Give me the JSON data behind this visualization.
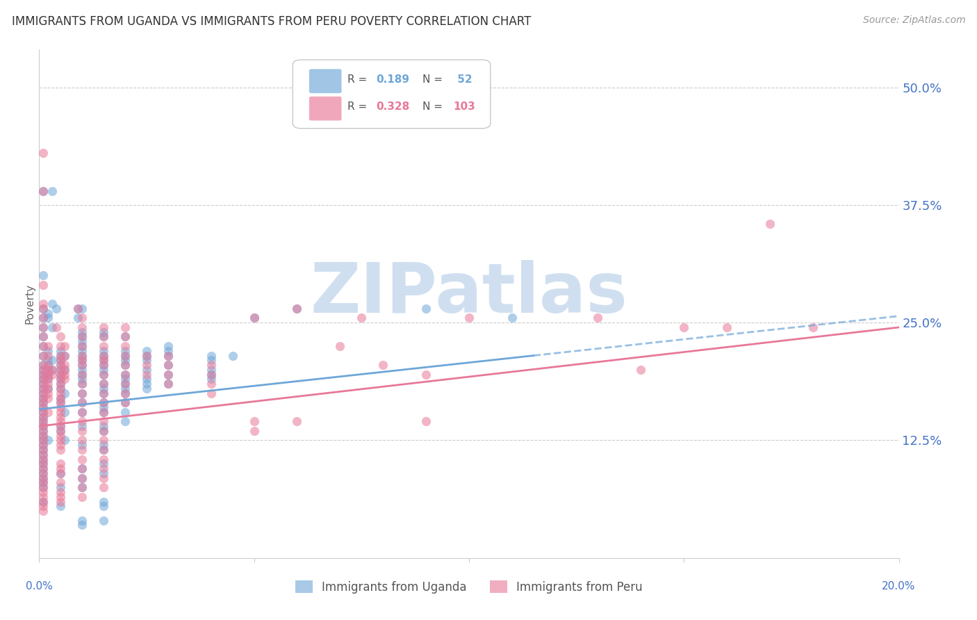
{
  "title": "IMMIGRANTS FROM UGANDA VS IMMIGRANTS FROM PERU POVERTY CORRELATION CHART",
  "source": "Source: ZipAtlas.com",
  "ylabel": "Poverty",
  "right_yticks": [
    "50.0%",
    "37.5%",
    "25.0%",
    "12.5%"
  ],
  "right_ytick_vals": [
    0.5,
    0.375,
    0.25,
    0.125
  ],
  "xlim": [
    0.0,
    0.2
  ],
  "ylim": [
    0.0,
    0.54
  ],
  "uganda_color": "#6ea6d8",
  "peru_color": "#e87898",
  "scatter_alpha": 0.55,
  "scatter_size": 90,
  "uganda_points": [
    [
      0.001,
      0.39
    ],
    [
      0.003,
      0.39
    ],
    [
      0.001,
      0.3
    ],
    [
      0.003,
      0.27
    ],
    [
      0.001,
      0.265
    ],
    [
      0.002,
      0.26
    ],
    [
      0.001,
      0.255
    ],
    [
      0.002,
      0.255
    ],
    [
      0.001,
      0.245
    ],
    [
      0.003,
      0.245
    ],
    [
      0.001,
      0.235
    ],
    [
      0.001,
      0.225
    ],
    [
      0.002,
      0.22
    ],
    [
      0.001,
      0.215
    ],
    [
      0.002,
      0.21
    ],
    [
      0.003,
      0.21
    ],
    [
      0.001,
      0.205
    ],
    [
      0.002,
      0.205
    ],
    [
      0.001,
      0.2
    ],
    [
      0.002,
      0.2
    ],
    [
      0.003,
      0.2
    ],
    [
      0.001,
      0.195
    ],
    [
      0.002,
      0.195
    ],
    [
      0.001,
      0.19
    ],
    [
      0.002,
      0.19
    ],
    [
      0.001,
      0.185
    ],
    [
      0.001,
      0.18
    ],
    [
      0.002,
      0.18
    ],
    [
      0.001,
      0.175
    ],
    [
      0.001,
      0.17
    ],
    [
      0.001,
      0.165
    ],
    [
      0.001,
      0.16
    ],
    [
      0.001,
      0.155
    ],
    [
      0.001,
      0.15
    ],
    [
      0.001,
      0.145
    ],
    [
      0.001,
      0.14
    ],
    [
      0.001,
      0.135
    ],
    [
      0.001,
      0.13
    ],
    [
      0.001,
      0.125
    ],
    [
      0.002,
      0.125
    ],
    [
      0.001,
      0.12
    ],
    [
      0.001,
      0.115
    ],
    [
      0.001,
      0.11
    ],
    [
      0.001,
      0.105
    ],
    [
      0.001,
      0.1
    ],
    [
      0.001,
      0.095
    ],
    [
      0.001,
      0.09
    ],
    [
      0.001,
      0.085
    ],
    [
      0.001,
      0.08
    ],
    [
      0.001,
      0.075
    ],
    [
      0.001,
      0.06
    ],
    [
      0.004,
      0.265
    ],
    [
      0.005,
      0.22
    ],
    [
      0.005,
      0.215
    ],
    [
      0.006,
      0.215
    ],
    [
      0.005,
      0.21
    ],
    [
      0.005,
      0.205
    ],
    [
      0.005,
      0.2
    ],
    [
      0.006,
      0.2
    ],
    [
      0.005,
      0.195
    ],
    [
      0.005,
      0.19
    ],
    [
      0.005,
      0.185
    ],
    [
      0.005,
      0.18
    ],
    [
      0.006,
      0.175
    ],
    [
      0.005,
      0.17
    ],
    [
      0.005,
      0.165
    ],
    [
      0.006,
      0.155
    ],
    [
      0.005,
      0.14
    ],
    [
      0.005,
      0.135
    ],
    [
      0.006,
      0.125
    ],
    [
      0.005,
      0.09
    ],
    [
      0.005,
      0.075
    ],
    [
      0.005,
      0.055
    ],
    [
      0.009,
      0.265
    ],
    [
      0.01,
      0.265
    ],
    [
      0.009,
      0.255
    ],
    [
      0.01,
      0.24
    ],
    [
      0.01,
      0.235
    ],
    [
      0.01,
      0.23
    ],
    [
      0.01,
      0.225
    ],
    [
      0.01,
      0.22
    ],
    [
      0.01,
      0.215
    ],
    [
      0.01,
      0.21
    ],
    [
      0.01,
      0.205
    ],
    [
      0.01,
      0.2
    ],
    [
      0.01,
      0.195
    ],
    [
      0.01,
      0.19
    ],
    [
      0.01,
      0.185
    ],
    [
      0.01,
      0.175
    ],
    [
      0.01,
      0.165
    ],
    [
      0.01,
      0.155
    ],
    [
      0.01,
      0.14
    ],
    [
      0.01,
      0.12
    ],
    [
      0.01,
      0.095
    ],
    [
      0.01,
      0.085
    ],
    [
      0.01,
      0.075
    ],
    [
      0.01,
      0.04
    ],
    [
      0.01,
      0.035
    ],
    [
      0.015,
      0.24
    ],
    [
      0.015,
      0.235
    ],
    [
      0.015,
      0.22
    ],
    [
      0.015,
      0.215
    ],
    [
      0.015,
      0.21
    ],
    [
      0.015,
      0.205
    ],
    [
      0.015,
      0.2
    ],
    [
      0.015,
      0.195
    ],
    [
      0.015,
      0.185
    ],
    [
      0.015,
      0.18
    ],
    [
      0.015,
      0.175
    ],
    [
      0.015,
      0.165
    ],
    [
      0.015,
      0.16
    ],
    [
      0.015,
      0.155
    ],
    [
      0.015,
      0.14
    ],
    [
      0.015,
      0.135
    ],
    [
      0.015,
      0.12
    ],
    [
      0.015,
      0.115
    ],
    [
      0.015,
      0.1
    ],
    [
      0.015,
      0.09
    ],
    [
      0.015,
      0.06
    ],
    [
      0.015,
      0.055
    ],
    [
      0.015,
      0.04
    ],
    [
      0.02,
      0.235
    ],
    [
      0.02,
      0.22
    ],
    [
      0.02,
      0.215
    ],
    [
      0.02,
      0.21
    ],
    [
      0.02,
      0.205
    ],
    [
      0.02,
      0.195
    ],
    [
      0.02,
      0.19
    ],
    [
      0.02,
      0.185
    ],
    [
      0.02,
      0.18
    ],
    [
      0.02,
      0.175
    ],
    [
      0.02,
      0.165
    ],
    [
      0.02,
      0.155
    ],
    [
      0.02,
      0.145
    ],
    [
      0.025,
      0.22
    ],
    [
      0.025,
      0.215
    ],
    [
      0.025,
      0.21
    ],
    [
      0.025,
      0.2
    ],
    [
      0.025,
      0.19
    ],
    [
      0.025,
      0.185
    ],
    [
      0.025,
      0.18
    ],
    [
      0.03,
      0.225
    ],
    [
      0.03,
      0.22
    ],
    [
      0.03,
      0.215
    ],
    [
      0.03,
      0.205
    ],
    [
      0.03,
      0.195
    ],
    [
      0.03,
      0.185
    ],
    [
      0.04,
      0.215
    ],
    [
      0.04,
      0.21
    ],
    [
      0.04,
      0.2
    ],
    [
      0.04,
      0.195
    ],
    [
      0.04,
      0.19
    ],
    [
      0.045,
      0.215
    ],
    [
      0.05,
      0.255
    ],
    [
      0.06,
      0.265
    ],
    [
      0.09,
      0.265
    ],
    [
      0.11,
      0.255
    ]
  ],
  "peru_points": [
    [
      0.001,
      0.43
    ],
    [
      0.001,
      0.39
    ],
    [
      0.001,
      0.29
    ],
    [
      0.001,
      0.27
    ],
    [
      0.001,
      0.265
    ],
    [
      0.001,
      0.255
    ],
    [
      0.001,
      0.245
    ],
    [
      0.001,
      0.235
    ],
    [
      0.001,
      0.225
    ],
    [
      0.002,
      0.225
    ],
    [
      0.001,
      0.215
    ],
    [
      0.002,
      0.215
    ],
    [
      0.001,
      0.205
    ],
    [
      0.002,
      0.205
    ],
    [
      0.001,
      0.2
    ],
    [
      0.002,
      0.2
    ],
    [
      0.003,
      0.2
    ],
    [
      0.001,
      0.195
    ],
    [
      0.002,
      0.195
    ],
    [
      0.003,
      0.195
    ],
    [
      0.001,
      0.19
    ],
    [
      0.002,
      0.19
    ],
    [
      0.001,
      0.185
    ],
    [
      0.002,
      0.185
    ],
    [
      0.001,
      0.18
    ],
    [
      0.002,
      0.18
    ],
    [
      0.001,
      0.175
    ],
    [
      0.002,
      0.175
    ],
    [
      0.001,
      0.17
    ],
    [
      0.002,
      0.17
    ],
    [
      0.001,
      0.165
    ],
    [
      0.001,
      0.16
    ],
    [
      0.001,
      0.155
    ],
    [
      0.002,
      0.155
    ],
    [
      0.001,
      0.15
    ],
    [
      0.001,
      0.145
    ],
    [
      0.001,
      0.14
    ],
    [
      0.001,
      0.135
    ],
    [
      0.001,
      0.13
    ],
    [
      0.001,
      0.125
    ],
    [
      0.001,
      0.12
    ],
    [
      0.001,
      0.115
    ],
    [
      0.001,
      0.11
    ],
    [
      0.001,
      0.105
    ],
    [
      0.001,
      0.1
    ],
    [
      0.001,
      0.095
    ],
    [
      0.001,
      0.09
    ],
    [
      0.001,
      0.085
    ],
    [
      0.001,
      0.08
    ],
    [
      0.001,
      0.075
    ],
    [
      0.001,
      0.07
    ],
    [
      0.001,
      0.065
    ],
    [
      0.001,
      0.06
    ],
    [
      0.001,
      0.055
    ],
    [
      0.001,
      0.05
    ],
    [
      0.004,
      0.245
    ],
    [
      0.005,
      0.235
    ],
    [
      0.005,
      0.225
    ],
    [
      0.006,
      0.225
    ],
    [
      0.005,
      0.215
    ],
    [
      0.006,
      0.215
    ],
    [
      0.005,
      0.21
    ],
    [
      0.005,
      0.205
    ],
    [
      0.006,
      0.205
    ],
    [
      0.005,
      0.2
    ],
    [
      0.006,
      0.2
    ],
    [
      0.005,
      0.195
    ],
    [
      0.006,
      0.195
    ],
    [
      0.005,
      0.19
    ],
    [
      0.006,
      0.19
    ],
    [
      0.005,
      0.185
    ],
    [
      0.005,
      0.18
    ],
    [
      0.005,
      0.175
    ],
    [
      0.005,
      0.17
    ],
    [
      0.005,
      0.165
    ],
    [
      0.005,
      0.16
    ],
    [
      0.005,
      0.155
    ],
    [
      0.005,
      0.15
    ],
    [
      0.005,
      0.145
    ],
    [
      0.005,
      0.14
    ],
    [
      0.005,
      0.135
    ],
    [
      0.005,
      0.13
    ],
    [
      0.005,
      0.125
    ],
    [
      0.005,
      0.12
    ],
    [
      0.005,
      0.115
    ],
    [
      0.005,
      0.1
    ],
    [
      0.005,
      0.095
    ],
    [
      0.005,
      0.09
    ],
    [
      0.005,
      0.08
    ],
    [
      0.005,
      0.07
    ],
    [
      0.005,
      0.065
    ],
    [
      0.005,
      0.06
    ],
    [
      0.009,
      0.265
    ],
    [
      0.01,
      0.255
    ],
    [
      0.01,
      0.245
    ],
    [
      0.01,
      0.235
    ],
    [
      0.01,
      0.225
    ],
    [
      0.01,
      0.215
    ],
    [
      0.01,
      0.21
    ],
    [
      0.01,
      0.205
    ],
    [
      0.01,
      0.195
    ],
    [
      0.01,
      0.185
    ],
    [
      0.01,
      0.175
    ],
    [
      0.01,
      0.165
    ],
    [
      0.01,
      0.155
    ],
    [
      0.01,
      0.145
    ],
    [
      0.01,
      0.135
    ],
    [
      0.01,
      0.125
    ],
    [
      0.01,
      0.115
    ],
    [
      0.01,
      0.105
    ],
    [
      0.01,
      0.095
    ],
    [
      0.01,
      0.085
    ],
    [
      0.01,
      0.075
    ],
    [
      0.01,
      0.065
    ],
    [
      0.015,
      0.245
    ],
    [
      0.015,
      0.235
    ],
    [
      0.015,
      0.225
    ],
    [
      0.015,
      0.215
    ],
    [
      0.015,
      0.21
    ],
    [
      0.015,
      0.205
    ],
    [
      0.015,
      0.195
    ],
    [
      0.015,
      0.185
    ],
    [
      0.015,
      0.175
    ],
    [
      0.015,
      0.165
    ],
    [
      0.015,
      0.155
    ],
    [
      0.015,
      0.145
    ],
    [
      0.015,
      0.135
    ],
    [
      0.015,
      0.125
    ],
    [
      0.015,
      0.115
    ],
    [
      0.015,
      0.105
    ],
    [
      0.015,
      0.095
    ],
    [
      0.015,
      0.085
    ],
    [
      0.015,
      0.075
    ],
    [
      0.02,
      0.245
    ],
    [
      0.02,
      0.235
    ],
    [
      0.02,
      0.225
    ],
    [
      0.02,
      0.215
    ],
    [
      0.02,
      0.205
    ],
    [
      0.02,
      0.195
    ],
    [
      0.02,
      0.185
    ],
    [
      0.02,
      0.175
    ],
    [
      0.02,
      0.165
    ],
    [
      0.025,
      0.215
    ],
    [
      0.025,
      0.205
    ],
    [
      0.025,
      0.195
    ],
    [
      0.03,
      0.215
    ],
    [
      0.03,
      0.205
    ],
    [
      0.03,
      0.195
    ],
    [
      0.03,
      0.185
    ],
    [
      0.04,
      0.205
    ],
    [
      0.04,
      0.195
    ],
    [
      0.04,
      0.185
    ],
    [
      0.04,
      0.175
    ],
    [
      0.05,
      0.255
    ],
    [
      0.05,
      0.145
    ],
    [
      0.05,
      0.135
    ],
    [
      0.06,
      0.265
    ],
    [
      0.06,
      0.145
    ],
    [
      0.07,
      0.225
    ],
    [
      0.075,
      0.255
    ],
    [
      0.08,
      0.205
    ],
    [
      0.09,
      0.195
    ],
    [
      0.09,
      0.145
    ],
    [
      0.1,
      0.255
    ],
    [
      0.13,
      0.255
    ],
    [
      0.14,
      0.2
    ],
    [
      0.15,
      0.245
    ],
    [
      0.16,
      0.245
    ],
    [
      0.17,
      0.355
    ],
    [
      0.18,
      0.245
    ]
  ],
  "uganda_line": {
    "x0": 0.0,
    "y0": 0.158,
    "x1": 0.115,
    "y1": 0.215
  },
  "uganda_line_ext": {
    "x0": 0.115,
    "y0": 0.215,
    "x1": 0.2,
    "y1": 0.257
  },
  "peru_line": {
    "x0": 0.0,
    "y0": 0.14,
    "x1": 0.2,
    "y1": 0.245
  },
  "background_color": "#ffffff",
  "grid_color": "#cccccc",
  "title_fontsize": 12,
  "axis_label_color": "#4472c4",
  "watermark_text": "ZIPatlas",
  "watermark_color": "#d0dff0",
  "watermark_fontsize": 72,
  "legend_fontsize": 11
}
